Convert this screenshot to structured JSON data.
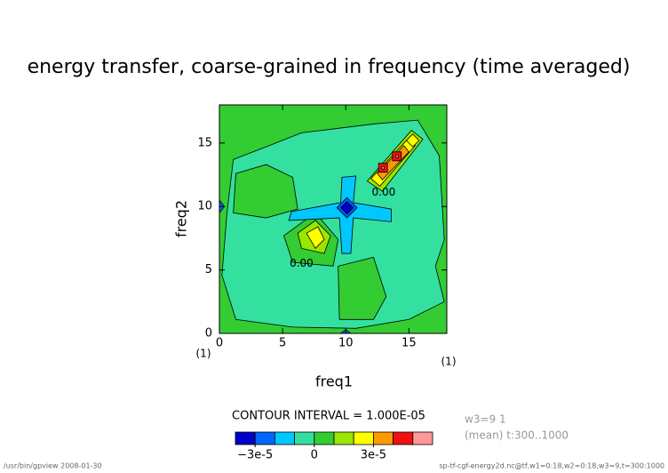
{
  "chart_data": {
    "type": "contour",
    "title": "energy transfer, coarse-grained in frequency (time averaged)",
    "xlabel": "freq1",
    "ylabel": "freq2",
    "xunit": "(1)",
    "yunit": "(1)",
    "xlim": [
      0,
      18
    ],
    "ylim": [
      0,
      18
    ],
    "xticks": [
      0,
      5,
      10,
      15
    ],
    "yticks": [
      0,
      5,
      10,
      15
    ],
    "background_level": 0,
    "regions": [
      {
        "level": -1e-05,
        "x": [
          1.1,
          3.7,
          6.5,
          12.2,
          15.7,
          17.4,
          17.8,
          17.1,
          17.8,
          15.0,
          10.8,
          5.8,
          1.3,
          0.2,
          0.6
        ],
        "y": [
          13.7,
          14.7,
          15.8,
          16.5,
          16.8,
          14.0,
          7.4,
          5.3,
          2.5,
          1.1,
          0.4,
          0.5,
          1.1,
          4.6,
          9.5
        ]
      },
      {
        "level": 0,
        "x": [
          1.3,
          3.7,
          5.8,
          6.2,
          3.7,
          1.1
        ],
        "y": [
          12.6,
          13.3,
          12.3,
          9.8,
          9.1,
          9.5
        ]
      },
      {
        "level": 0,
        "x": [
          9.4,
          12.2,
          13.2,
          12.2,
          9.5
        ],
        "y": [
          5.3,
          6.0,
          2.9,
          1.1,
          1.1
        ]
      },
      {
        "level": 0,
        "x": [
          5.1,
          7.6,
          9.4,
          9.0,
          5.8
        ],
        "y": [
          7.7,
          9.5,
          7.4,
          5.3,
          5.6
        ]
      },
      {
        "level": 1e-05,
        "x": [
          6.2,
          7.6,
          8.8,
          8.3,
          6.5
        ],
        "y": [
          7.9,
          8.9,
          7.7,
          6.3,
          6.7
        ]
      },
      {
        "level": 2e-05,
        "x": [
          6.9,
          7.8,
          8.3,
          7.6
        ],
        "y": [
          7.9,
          8.4,
          7.4,
          6.7
        ]
      },
      {
        "level": -2e-05,
        "x": [
          9.7,
          10.8,
          10.6,
          13.6,
          13.6,
          10.6,
          10.4,
          9.7,
          9.5,
          5.5,
          5.7,
          9.6
        ],
        "y": [
          12.3,
          12.4,
          10.3,
          9.8,
          8.8,
          9.1,
          6.3,
          6.3,
          9.1,
          8.9,
          9.6,
          10.3
        ]
      },
      {
        "level": -3e-05,
        "x": [
          10.1,
          10.9,
          10.1,
          9.3
        ],
        "y": [
          10.7,
          9.9,
          9.1,
          9.9
        ]
      },
      {
        "level": -4e-05,
        "x": [
          10.1,
          10.6,
          10.1,
          9.6
        ],
        "y": [
          10.4,
          9.9,
          9.4,
          9.9
        ]
      },
      {
        "level": -3e-05,
        "x": [
          0,
          0.4,
          0
        ],
        "y": [
          10.5,
          10,
          9.5
        ]
      },
      {
        "level": -3e-05,
        "x": [
          9.6,
          10,
          10.4
        ],
        "y": [
          0,
          0.3,
          0
        ]
      },
      {
        "level": 1e-05,
        "x": [
          11.7,
          15.2,
          16.1,
          12.9
        ],
        "y": [
          12.0,
          16.0,
          15.3,
          11.2
        ]
      },
      {
        "level": 2e-05,
        "x": [
          12.0,
          14.9,
          15.5,
          12.7
        ],
        "y": [
          12.2,
          15.3,
          14.8,
          11.6
        ]
      },
      {
        "level": 3e-05,
        "x": [
          12.5,
          14.6,
          15.0,
          12.9
        ],
        "y": [
          12.6,
          14.8,
          14.3,
          12.1
        ]
      },
      {
        "level": 4e-05,
        "x": [
          12.6,
          13.3,
          13.3,
          12.6
        ],
        "y": [
          12.7,
          12.7,
          13.4,
          13.4
        ]
      },
      {
        "level": 4e-05,
        "x": [
          13.7,
          14.4,
          14.4,
          13.7
        ],
        "y": [
          13.6,
          13.6,
          14.3,
          14.3
        ]
      },
      {
        "level": 5e-05,
        "x": [
          12.85,
          13.05,
          13.05,
          12.85
        ],
        "y": [
          12.95,
          12.95,
          13.15,
          13.15
        ]
      },
      {
        "level": 5e-05,
        "x": [
          13.95,
          14.15,
          14.15,
          13.95
        ],
        "y": [
          13.85,
          13.85,
          14.05,
          14.05
        ]
      },
      {
        "level": 2e-05,
        "x": [
          15.3,
          15.8,
          15.3,
          14.8
        ],
        "y": [
          15.7,
          15.2,
          14.7,
          15.2
        ]
      }
    ],
    "contour_labels": [
      {
        "text": "0.00",
        "x": 13.0,
        "y": 11.1
      },
      {
        "text": "0.00",
        "x": 6.5,
        "y": 5.5
      }
    ],
    "colorbar": {
      "title": "CONTOUR INTERVAL = 1.000E-05",
      "levels": [
        -4e-05,
        -3e-05,
        -2e-05,
        -1e-05,
        0,
        1e-05,
        2e-05,
        3e-05,
        4e-05,
        5e-05,
        6e-05
      ],
      "colors": [
        "#0000c8",
        "#0064ff",
        "#00c8ff",
        "#33e0a0",
        "#33cc33",
        "#99e600",
        "#ffff00",
        "#ff9900",
        "#ee1111",
        "#ff9999"
      ],
      "ticks": [
        {
          "value": -3e-05,
          "label": "−3e-5"
        },
        0,
        {
          "value": 3e-05,
          "label": "3e-5"
        }
      ]
    },
    "notes": [
      "w3=9 1",
      "(mean) t:300..1000"
    ],
    "footer_left": "/usr/bin/gpview  2008-01-30",
    "footer_right": "sp-tf-cgf-energy2d.nc@tf,w1=0:18,w2=0:18,w3=9,t=300:1000"
  }
}
